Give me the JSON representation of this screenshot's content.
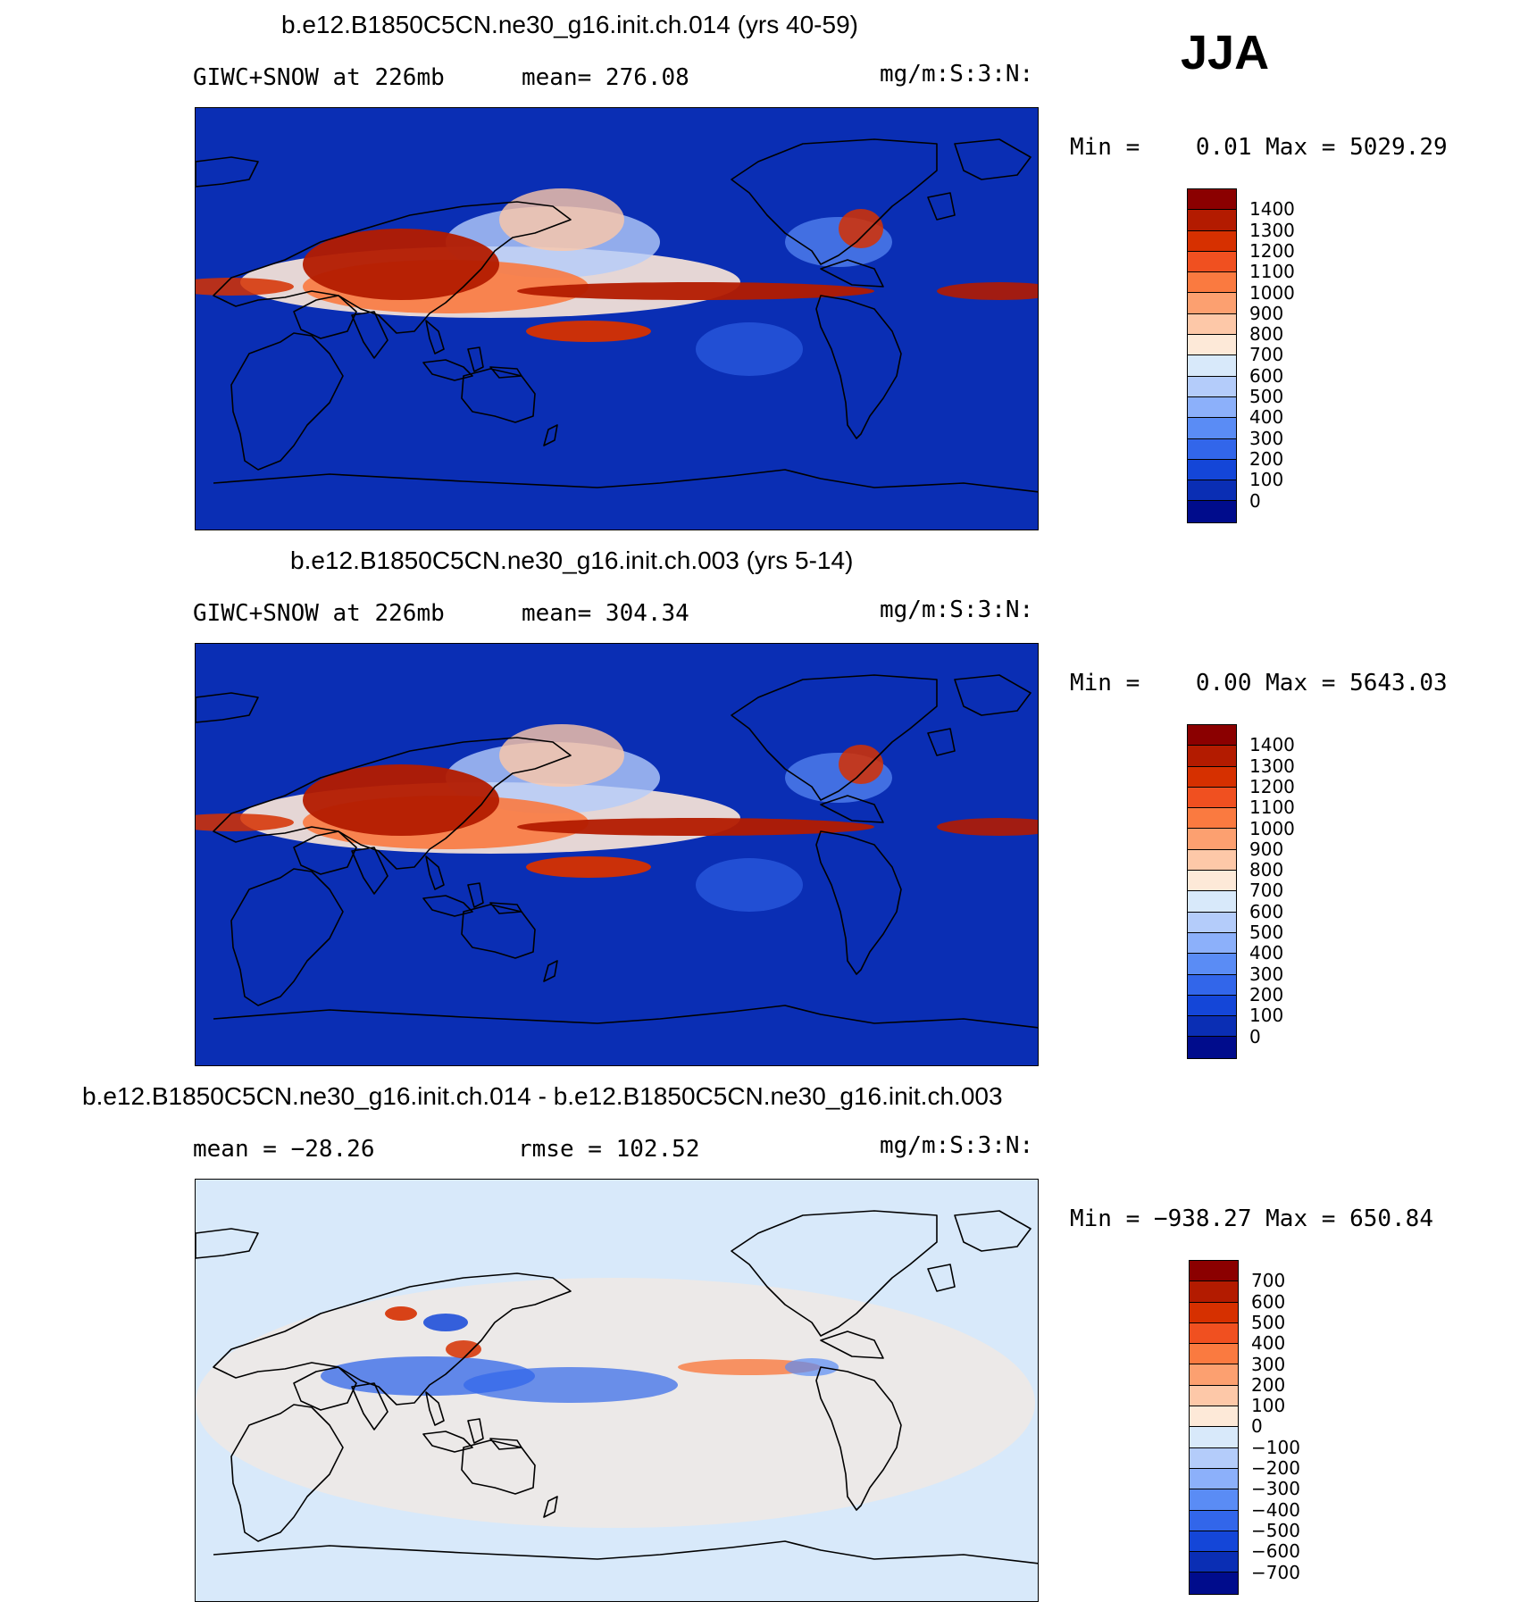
{
  "season": "JJA",
  "panels": [
    {
      "title": "b.e12.B1850C5CN.ne30_g16.init.ch.014 (yrs 40-59)",
      "left_label": "GIWC+SNOW at 226mb",
      "mid_label": "mean= 276.08",
      "units": "mg/m:S:3:N:",
      "minmax": "Min =    0.01 Max = 5029.29",
      "colorbar": {
        "labels": [
          "1400",
          "1300",
          "1200",
          "1100",
          "1000",
          "900",
          "800",
          "700",
          "600",
          "500",
          "400",
          "300",
          "200",
          "100",
          "0"
        ],
        "colors": [
          "#8b0000",
          "#b31b00",
          "#d63000",
          "#f05020",
          "#fa7a40",
          "#fca070",
          "#fdc8a8",
          "#fde9d8",
          "#d8e9fa",
          "#b4ccfa",
          "#8cb0fa",
          "#5a8cf5",
          "#3266ea",
          "#1446d8",
          "#0a2eb4",
          "#000c8c"
        ]
      },
      "field_type": "control",
      "chart_data": {
        "type": "heatmap",
        "title": "b.e12.B1850C5CN.ne30_g16.init.ch.014 (yrs 40-59)",
        "variable": "GIWC+SNOW at 226mb",
        "units": "mg/m:S:3:N:",
        "mean": 276.08,
        "min": 0.01,
        "max": 5029.29,
        "levels": [
          0,
          100,
          200,
          300,
          400,
          500,
          600,
          700,
          800,
          900,
          1000,
          1100,
          1200,
          1300,
          1400
        ]
      }
    },
    {
      "title": "b.e12.B1850C5CN.ne30_g16.init.ch.003 (yrs 5-14)",
      "left_label": "GIWC+SNOW at 226mb",
      "mid_label": "mean= 304.34",
      "units": "mg/m:S:3:N:",
      "minmax": "Min =    0.00 Max = 5643.03",
      "colorbar": {
        "labels": [
          "1400",
          "1300",
          "1200",
          "1100",
          "1000",
          "900",
          "800",
          "700",
          "600",
          "500",
          "400",
          "300",
          "200",
          "100",
          "0"
        ],
        "colors": [
          "#8b0000",
          "#b31b00",
          "#d63000",
          "#f05020",
          "#fa7a40",
          "#fca070",
          "#fdc8a8",
          "#fde9d8",
          "#d8e9fa",
          "#b4ccfa",
          "#8cb0fa",
          "#5a8cf5",
          "#3266ea",
          "#1446d8",
          "#0a2eb4",
          "#000c8c"
        ]
      },
      "field_type": "control",
      "chart_data": {
        "type": "heatmap",
        "title": "b.e12.B1850C5CN.ne30_g16.init.ch.003 (yrs 5-14)",
        "variable": "GIWC+SNOW at 226mb",
        "units": "mg/m:S:3:N:",
        "mean": 304.34,
        "min": 0.0,
        "max": 5643.03,
        "levels": [
          0,
          100,
          200,
          300,
          400,
          500,
          600,
          700,
          800,
          900,
          1000,
          1100,
          1200,
          1300,
          1400
        ]
      }
    },
    {
      "title": "b.e12.B1850C5CN.ne30_g16.init.ch.014 - b.e12.B1850C5CN.ne30_g16.init.ch.003",
      "left_label": "mean = −28.26",
      "mid_label": "rmse = 102.52",
      "units": "mg/m:S:3:N:",
      "minmax": "Min = −938.27 Max = 650.84",
      "colorbar": {
        "labels": [
          "700",
          "600",
          "500",
          "400",
          "300",
          "200",
          "100",
          "0",
          "−100",
          "−200",
          "−300",
          "−400",
          "−500",
          "−600",
          "−700"
        ],
        "colors": [
          "#8b0000",
          "#b31b00",
          "#d63000",
          "#f05020",
          "#fa7a40",
          "#fca070",
          "#fdc8a8",
          "#fde9d8",
          "#d8e9fa",
          "#b4ccfa",
          "#8cb0fa",
          "#5a8cf5",
          "#3266ea",
          "#1446d8",
          "#0a2eb4",
          "#000c8c"
        ]
      },
      "field_type": "difference",
      "chart_data": {
        "type": "heatmap",
        "title": "b.e12.B1850C5CN.ne30_g16.init.ch.014 - b.e12.B1850C5CN.ne30_g16.init.ch.003",
        "units": "mg/m:S:3:N:",
        "mean": -28.26,
        "rmse": 102.52,
        "min": -938.27,
        "max": 650.84,
        "levels": [
          -700,
          -600,
          -500,
          -400,
          -300,
          -200,
          -100,
          0,
          100,
          200,
          300,
          400,
          500,
          600,
          700
        ]
      }
    }
  ]
}
